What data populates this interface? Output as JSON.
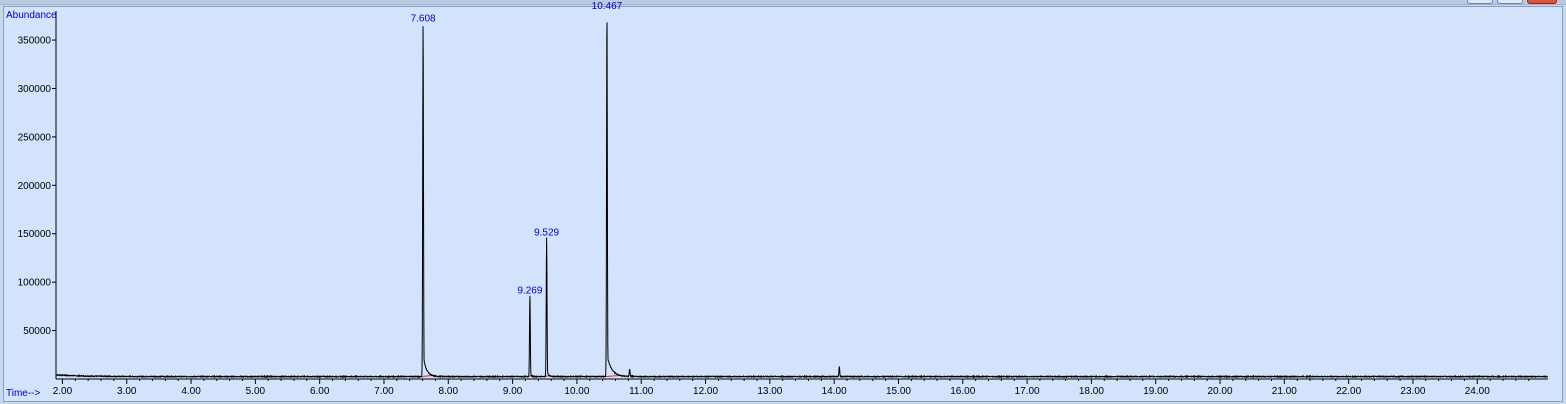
{
  "window": {
    "controls": [
      "minimize",
      "maximize",
      "close"
    ]
  },
  "chart_data": {
    "type": "line",
    "ylabel": "Abundance",
    "xlabel": "Time-->",
    "xlim": [
      1.9,
      25.1
    ],
    "ylim": [
      0,
      380000
    ],
    "x_ticks": [
      2.0,
      3.0,
      4.0,
      5.0,
      6.0,
      7.0,
      8.0,
      9.0,
      10.0,
      11.0,
      12.0,
      13.0,
      14.0,
      15.0,
      16.0,
      17.0,
      18.0,
      19.0,
      20.0,
      21.0,
      22.0,
      23.0,
      24.0
    ],
    "x_tick_labels": [
      "2.00",
      "3.00",
      "4.00",
      "5.00",
      "6.00",
      "7.00",
      "8.00",
      "9.00",
      "10.00",
      "11.00",
      "12.00",
      "13.00",
      "14.00",
      "15.00",
      "16.00",
      "17.00",
      "18.00",
      "19.00",
      "20.00",
      "21.00",
      "22.00",
      "23.00",
      "24.00"
    ],
    "y_ticks": [
      50000,
      100000,
      150000,
      200000,
      250000,
      300000,
      350000
    ],
    "y_tick_labels": [
      "50000",
      "100000",
      "150000",
      "200000",
      "250000",
      "300000",
      "350000"
    ],
    "baseline": 2500,
    "colors": {
      "trace": "#000000",
      "integration": "#e0204a",
      "labels": "#0000cc",
      "background": "#d3e3fb"
    },
    "peaks": [
      {
        "rt": 7.608,
        "label": "7.608",
        "height": 365000,
        "tail": 0.05,
        "integrated": true
      },
      {
        "rt": 9.269,
        "label": "9.269",
        "height": 84000,
        "tail": 0.015,
        "integrated": true
      },
      {
        "rt": 9.529,
        "label": "9.529",
        "height": 144000,
        "tail": 0.02,
        "integrated": true
      },
      {
        "rt": 10.467,
        "label": "10.467",
        "height": 378000,
        "tail": 0.07,
        "integrated": true
      },
      {
        "rt": 10.82,
        "label": "",
        "height": 8000,
        "tail": 0.04,
        "integrated": false
      },
      {
        "rt": 14.08,
        "label": "",
        "height": 10000,
        "tail": 0.03,
        "integrated": false
      }
    ]
  }
}
